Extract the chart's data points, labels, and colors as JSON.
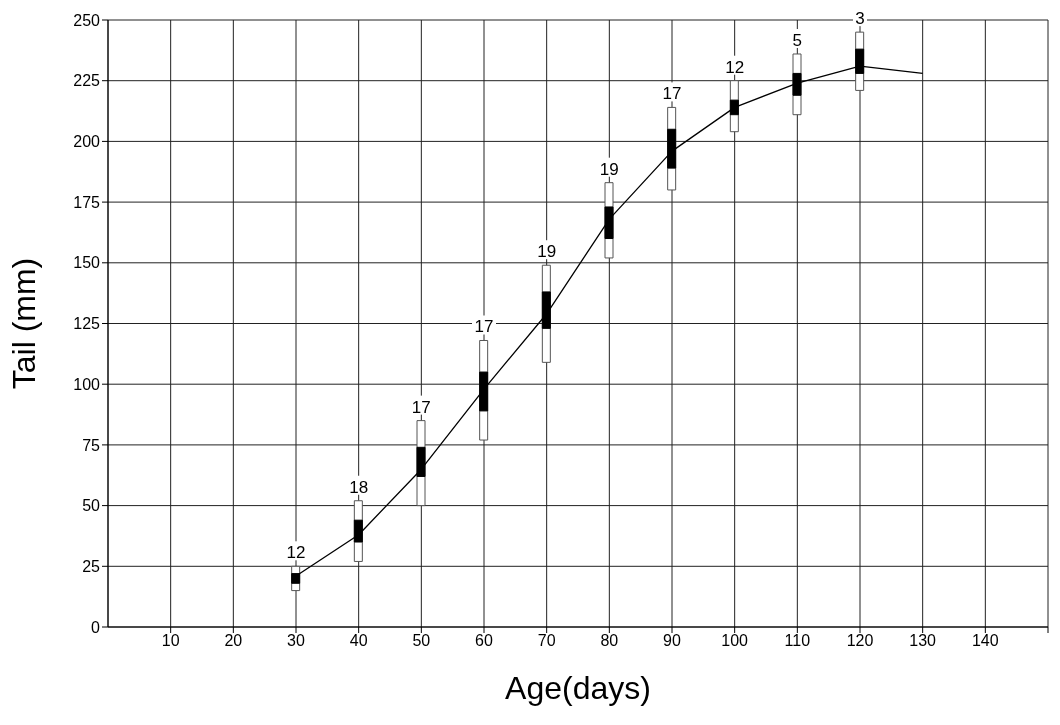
{
  "chart_data": {
    "type": "bar",
    "xlabel": "Age(days)",
    "ylabel": "Tail (mm)",
    "xlim": [
      0,
      150
    ],
    "xticks": [
      10,
      20,
      30,
      40,
      50,
      60,
      70,
      80,
      90,
      100,
      110,
      120,
      130,
      140,
      {
        "value": 150,
        "label": null
      }
    ],
    "ylim": [
      0,
      250
    ],
    "yticks": [
      0,
      25,
      50,
      75,
      100,
      125,
      150,
      175,
      200,
      225,
      250
    ],
    "grid": true,
    "series": [
      {
        "color": "#ffffff",
        "x": [
          30,
          40,
          50,
          60,
          70,
          80,
          90,
          100,
          110,
          120
        ],
        "base": [
          15,
          27,
          50,
          77,
          109,
          152,
          180,
          204,
          211,
          221
        ],
        "values": [
          10,
          25,
          35,
          41,
          40,
          31,
          34,
          21,
          25,
          24
        ]
      },
      {
        "color": "#000000",
        "x": [
          30,
          40,
          50,
          60,
          70,
          80,
          90,
          100,
          110,
          120
        ],
        "base": [
          18,
          35,
          62,
          89,
          123,
          160,
          189,
          211,
          219,
          228
        ],
        "values": [
          4,
          9,
          12,
          16,
          15,
          13,
          16,
          6,
          9,
          10
        ]
      },
      {
        "type": "line",
        "color": "#000000",
        "x": [
          30,
          40,
          50,
          60,
          70,
          80,
          90,
          100,
          110,
          120,
          130
        ],
        "values": [
          21,
          38,
          65,
          98,
          129,
          168,
          196,
          214,
          224,
          231,
          228
        ]
      }
    ],
    "annotations": [
      {
        "text": "12",
        "x": 30,
        "y": 25
      },
      {
        "text": "18",
        "x": 40,
        "y": 52
      },
      {
        "text": "17",
        "x": 50,
        "y": 85
      },
      {
        "text": "17",
        "x": 60,
        "y": 118
      },
      {
        "text": "19",
        "x": 70,
        "y": 149
      },
      {
        "text": "19",
        "x": 80,
        "y": 183
      },
      {
        "text": "17",
        "x": 90,
        "y": 214
      },
      {
        "text": "12",
        "x": 100,
        "y": 225
      },
      {
        "text": "5",
        "x": 110,
        "y": 236
      },
      {
        "text": "3",
        "x": 120,
        "y": 245
      }
    ]
  }
}
